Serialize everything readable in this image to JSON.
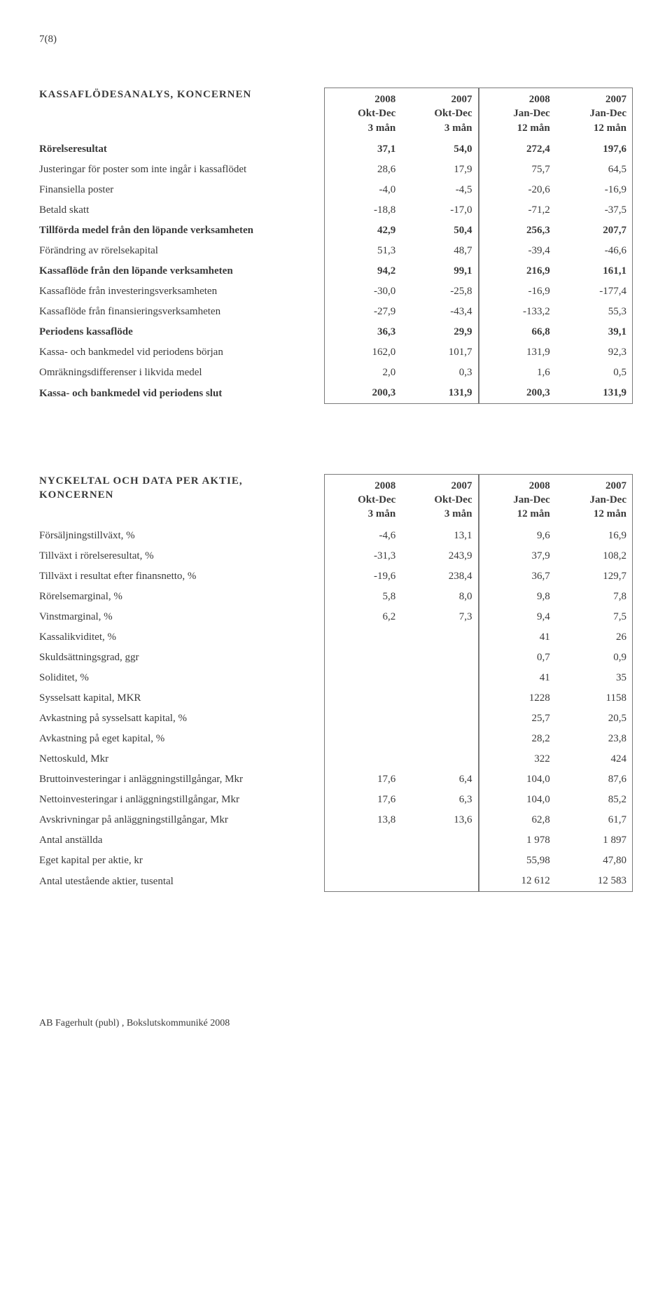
{
  "page_number": "7(8)",
  "footer": "AB Fagerhult (publ) , Bokslutskommuniké 2008",
  "table1": {
    "title": "KASSAFLÖDESANALYS, KONCERNEN",
    "cols": [
      {
        "y": "2008",
        "p": "Okt-Dec",
        "m": "3 mån"
      },
      {
        "y": "2007",
        "p": "Okt-Dec",
        "m": "3 mån"
      },
      {
        "y": "2008",
        "p": "Jan-Dec",
        "m": "12 mån"
      },
      {
        "y": "2007",
        "p": "Jan-Dec",
        "m": "12 mån"
      }
    ],
    "rows": [
      {
        "label": "Rörelseresultat",
        "v": [
          "37,1",
          "54,0",
          "272,4",
          "197,6"
        ],
        "bold": true
      },
      {
        "label": "Justeringar för poster som inte ingår i kassaflödet",
        "v": [
          "28,6",
          "17,9",
          "75,7",
          "64,5"
        ]
      },
      {
        "label": "Finansiella poster",
        "v": [
          "-4,0",
          "-4,5",
          "-20,6",
          "-16,9"
        ]
      },
      {
        "label": "Betald skatt",
        "v": [
          "-18,8",
          "-17,0",
          "-71,2",
          "-37,5"
        ]
      },
      {
        "label": "Tillförda medel från den löpande verksamheten",
        "v": [
          "42,9",
          "50,4",
          "256,3",
          "207,7"
        ],
        "bold": true
      },
      {
        "label": "Förändring av rörelsekapital",
        "v": [
          "51,3",
          "48,7",
          "-39,4",
          "-46,6"
        ]
      },
      {
        "label": "Kassaflöde från den löpande verksamheten",
        "v": [
          "94,2",
          "99,1",
          "216,9",
          "161,1"
        ],
        "bold": true
      },
      {
        "label": "Kassaflöde från investeringsverksamheten",
        "v": [
          "-30,0",
          "-25,8",
          "-16,9",
          "-177,4"
        ]
      },
      {
        "label": "Kassaflöde från finansieringsverksamheten",
        "v": [
          "-27,9",
          "-43,4",
          "-133,2",
          "55,3"
        ]
      },
      {
        "label": "Periodens kassaflöde",
        "v": [
          "36,3",
          "29,9",
          "66,8",
          "39,1"
        ],
        "bold": true
      },
      {
        "label": "Kassa- och bankmedel vid periodens början",
        "v": [
          "162,0",
          "101,7",
          "131,9",
          "92,3"
        ]
      },
      {
        "label": "Omräkningsdifferenser i likvida medel",
        "v": [
          "2,0",
          "0,3",
          "1,6",
          "0,5"
        ]
      },
      {
        "label": "Kassa- och bankmedel vid periodens slut",
        "v": [
          "200,3",
          "131,9",
          "200,3",
          "131,9"
        ],
        "bold": true
      }
    ]
  },
  "table2": {
    "title": "NYCKELTAL OCH DATA PER AKTIE, KONCERNEN",
    "cols": [
      {
        "y": "2008",
        "p": "Okt-Dec",
        "m": "3 mån"
      },
      {
        "y": "2007",
        "p": "Okt-Dec",
        "m": "3 mån"
      },
      {
        "y": "2008",
        "p": "Jan-Dec",
        "m": "12 mån"
      },
      {
        "y": "2007",
        "p": "Jan-Dec",
        "m": "12 mån"
      }
    ],
    "rows": [
      {
        "label": "Försäljningstillväxt, %",
        "v": [
          "-4,6",
          "13,1",
          "9,6",
          "16,9"
        ]
      },
      {
        "label": "Tillväxt i rörelseresultat, %",
        "v": [
          "-31,3",
          "243,9",
          "37,9",
          "108,2"
        ]
      },
      {
        "label": "Tillväxt i resultat efter finansnetto, %",
        "v": [
          "-19,6",
          "238,4",
          "36,7",
          "129,7"
        ]
      },
      {
        "label": "Rörelsemarginal, %",
        "v": [
          "5,8",
          "8,0",
          "9,8",
          "7,8"
        ]
      },
      {
        "label": "Vinstmarginal, %",
        "v": [
          "6,2",
          "7,3",
          "9,4",
          "7,5"
        ]
      },
      {
        "label": "Kassalikviditet, %",
        "v": [
          "",
          "",
          "41",
          "26"
        ]
      },
      {
        "label": "Skuldsättningsgrad, ggr",
        "v": [
          "",
          "",
          "0,7",
          "0,9"
        ]
      },
      {
        "label": "Soliditet, %",
        "v": [
          "",
          "",
          "41",
          "35"
        ]
      },
      {
        "label": "Sysselsatt kapital, MKR",
        "v": [
          "",
          "",
          "1228",
          "1158"
        ]
      },
      {
        "label": "Avkastning på sysselsatt kapital, %",
        "v": [
          "",
          "",
          "25,7",
          "20,5"
        ]
      },
      {
        "label": "Avkastning på eget kapital, %",
        "v": [
          "",
          "",
          "28,2",
          "23,8"
        ]
      },
      {
        "label": "Nettoskuld, Mkr",
        "v": [
          "",
          "",
          "322",
          "424"
        ]
      },
      {
        "label": "Bruttoinvesteringar i anläggningstillgångar, Mkr",
        "v": [
          "17,6",
          "6,4",
          "104,0",
          "87,6"
        ]
      },
      {
        "label": "Nettoinvesteringar i anläggningstillgångar, Mkr",
        "v": [
          "17,6",
          "6,3",
          "104,0",
          "85,2"
        ]
      },
      {
        "label": "Avskrivningar på anläggningstillgångar, Mkr",
        "v": [
          "13,8",
          "13,6",
          "62,8",
          "61,7"
        ]
      },
      {
        "label": "Antal anställda",
        "v": [
          "",
          "",
          "1 978",
          "1 897"
        ]
      },
      {
        "label": "Eget kapital per aktie, kr",
        "v": [
          "",
          "",
          "55,98",
          "47,80"
        ]
      },
      {
        "label": "Antal utestående aktier, tusental",
        "v": [
          "",
          "",
          "12 612",
          "12 583"
        ]
      }
    ]
  }
}
